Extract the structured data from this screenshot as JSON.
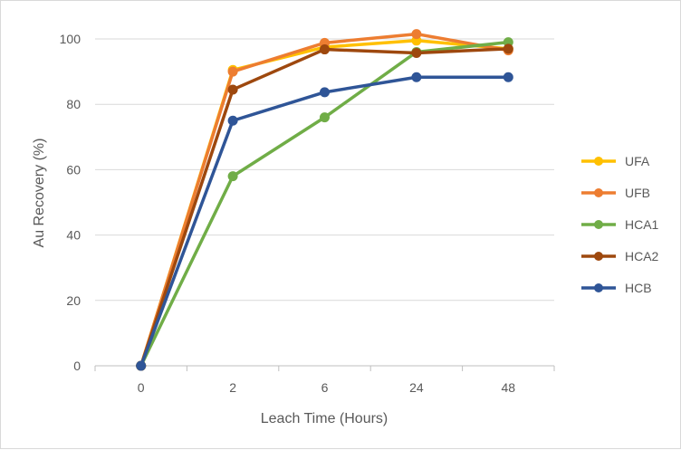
{
  "chart_data": {
    "type": "line",
    "title": "",
    "xlabel": "Leach Time (Hours)",
    "ylabel": "Au Recovery (%)",
    "categories": [
      "0",
      "2",
      "6",
      "24",
      "48"
    ],
    "ylim": [
      0,
      100
    ],
    "yticks": [
      0,
      20,
      40,
      60,
      80,
      100
    ],
    "grid": true,
    "legend_position": "right",
    "series": [
      {
        "name": "UFA",
        "color": "#FFC000",
        "values": [
          0,
          90.5,
          97.5,
          99.5,
          97
        ]
      },
      {
        "name": "UFB",
        "color": "#ED7D31",
        "values": [
          0,
          90,
          98.8,
          101.5,
          96.5
        ]
      },
      {
        "name": "HCA1",
        "color": "#70AD47",
        "values": [
          0,
          58,
          76,
          96,
          99
        ]
      },
      {
        "name": "HCA2",
        "color": "#9E480E",
        "values": [
          0,
          84.5,
          96.8,
          95.7,
          97
        ]
      },
      {
        "name": "HCB",
        "color": "#2F5597",
        "values": [
          0,
          75,
          83.7,
          88.3,
          88.3
        ]
      }
    ]
  }
}
